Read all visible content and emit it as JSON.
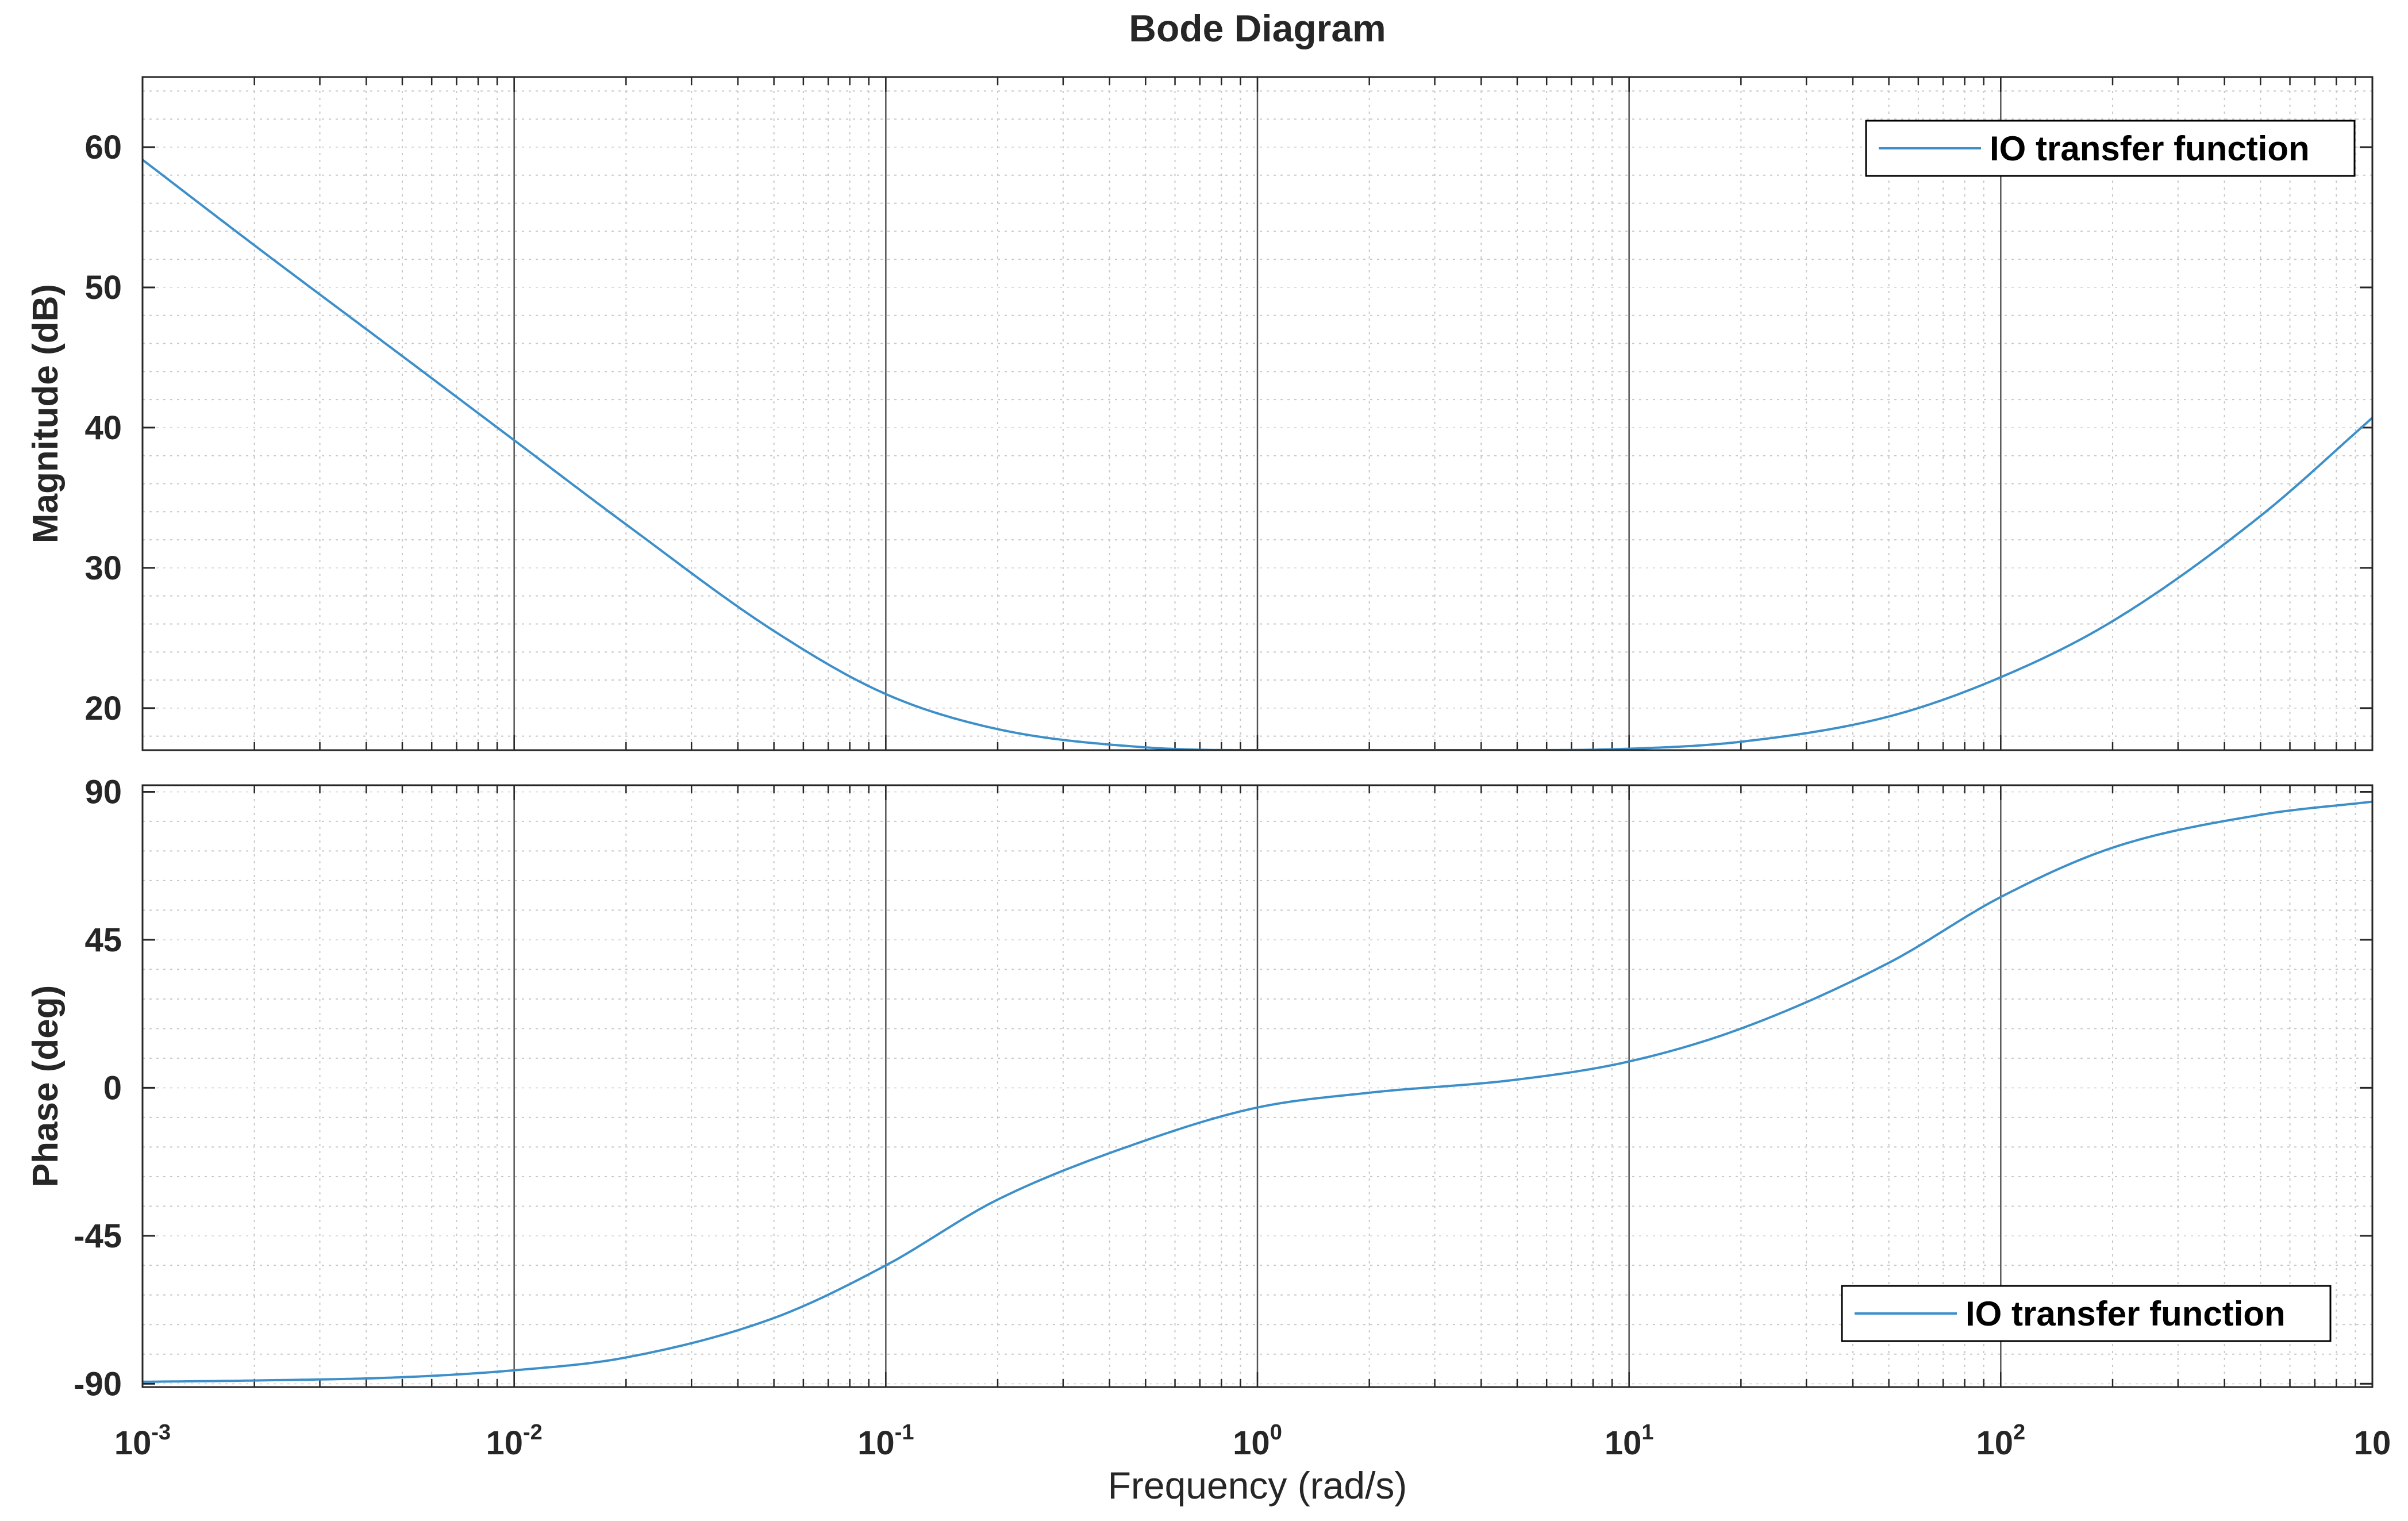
{
  "colors": {
    "series": "#3c8fc9",
    "axes": "#262626",
    "background": "#ffffff"
  },
  "chart_data": [
    {
      "type": "line",
      "title": "Bode Diagram",
      "xlabel": "Frequency  (rad/s)",
      "ylabel": "Magnitude (dB)",
      "xscale": "log",
      "xlim": [
        0.001,
        1000
      ],
      "ylim": [
        17,
        65
      ],
      "yticks": [
        20,
        30,
        40,
        50,
        60
      ],
      "grid": true,
      "legend": {
        "entries": [
          "IO transfer function"
        ],
        "location": "top-right"
      },
      "series": [
        {
          "name": "IO transfer function",
          "x": [
            0.001,
            0.002,
            0.005,
            0.01,
            0.02,
            0.05,
            0.1,
            0.2,
            0.5,
            1,
            2,
            5,
            10,
            20,
            50,
            100,
            200,
            500,
            1000
          ],
          "y": [
            59.1,
            53.0,
            45.1,
            39.1,
            33.1,
            25.5,
            21.0,
            18.5,
            17.2,
            17.0,
            17.0,
            17.0,
            17.1,
            17.6,
            19.4,
            22.2,
            26.2,
            33.7,
            40.7
          ]
        }
      ]
    },
    {
      "type": "line",
      "xlabel": "Frequency  (rad/s)",
      "ylabel": "Phase (deg)",
      "xscale": "log",
      "xlim": [
        0.001,
        1000
      ],
      "ylim": [
        -91,
        92
      ],
      "yticks": [
        -90,
        -45,
        0,
        45,
        90
      ],
      "grid": true,
      "legend": {
        "entries": [
          "IO transfer function"
        ],
        "location": "bottom-right"
      },
      "series": [
        {
          "name": "IO transfer function",
          "x": [
            0.001,
            0.002,
            0.005,
            0.01,
            0.02,
            0.05,
            0.1,
            0.2,
            0.5,
            1,
            2,
            5,
            10,
            20,
            50,
            100,
            200,
            500,
            1000
          ],
          "y": [
            -89.4,
            -89.0,
            -88.0,
            -85.9,
            -82.0,
            -70.0,
            -54.0,
            -34.0,
            -16.0,
            -6.0,
            -1.5,
            2.5,
            8.0,
            18.0,
            38.0,
            58.0,
            73.0,
            83.0,
            87.0
          ]
        }
      ]
    }
  ],
  "xticks": [
    {
      "base": "10",
      "exp": "-3"
    },
    {
      "base": "10",
      "exp": "-2"
    },
    {
      "base": "10",
      "exp": "-1"
    },
    {
      "base": "10",
      "exp": "0"
    },
    {
      "base": "10",
      "exp": "1"
    },
    {
      "base": "10",
      "exp": "2"
    },
    {
      "base": "10",
      "exp": ""
    }
  ]
}
